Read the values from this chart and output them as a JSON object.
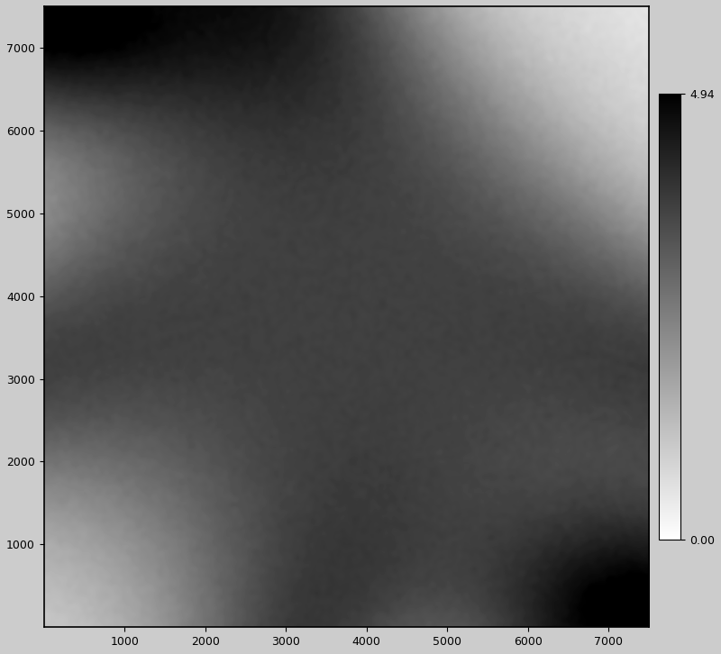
{
  "xmin": 0,
  "xmax": 7500,
  "ymin": 0,
  "ymax": 7500,
  "grid_points": 500,
  "vmin": 0.0,
  "vmax": 4.94,
  "colorbar_ticks": [
    0.0,
    4.94
  ],
  "colorbar_labels": [
    "0.00",
    "4.94"
  ],
  "xticks": [
    1000,
    2000,
    3000,
    4000,
    5000,
    6000,
    7000
  ],
  "yticks": [
    1000,
    2000,
    3000,
    4000,
    5000,
    6000,
    7000
  ],
  "background_color": "#cccccc",
  "figsize": [
    8.0,
    7.26
  ],
  "dpi": 100
}
